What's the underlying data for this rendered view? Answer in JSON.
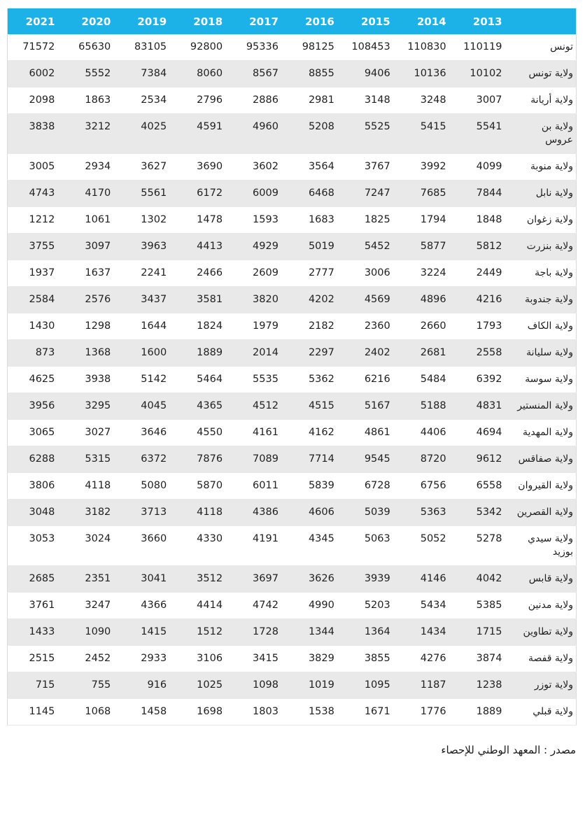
{
  "table": {
    "year_columns": [
      "2021",
      "2020",
      "2019",
      "2018",
      "2017",
      "2016",
      "2015",
      "2014",
      "2013"
    ],
    "region_column_header": "",
    "rows": [
      {
        "region": "تونس",
        "values": [
          "71572",
          "65630",
          "83105",
          "92800",
          "95336",
          "98125",
          "108453",
          "110830",
          "110119"
        ]
      },
      {
        "region": "ولاية تونس",
        "values": [
          "6002",
          "5552",
          "7384",
          "8060",
          "8567",
          "8855",
          "9406",
          "10136",
          "10102"
        ]
      },
      {
        "region": "ولاية أريانة",
        "values": [
          "2098",
          "1863",
          "2534",
          "2796",
          "2886",
          "2981",
          "3148",
          "3248",
          "3007"
        ]
      },
      {
        "region": "ولاية بن عروس",
        "values": [
          "3838",
          "3212",
          "4025",
          "4591",
          "4960",
          "5208",
          "5525",
          "5415",
          "5541"
        ]
      },
      {
        "region": "ولاية منوبة",
        "values": [
          "3005",
          "2934",
          "3627",
          "3690",
          "3602",
          "3564",
          "3767",
          "3992",
          "4099"
        ]
      },
      {
        "region": "ولاية نابل",
        "values": [
          "4743",
          "4170",
          "5561",
          "6172",
          "6009",
          "6468",
          "7247",
          "7685",
          "7844"
        ]
      },
      {
        "region": "ولاية زغوان",
        "values": [
          "1212",
          "1061",
          "1302",
          "1478",
          "1593",
          "1683",
          "1825",
          "1794",
          "1848"
        ]
      },
      {
        "region": "ولاية بنزرت",
        "values": [
          "3755",
          "3097",
          "3963",
          "4413",
          "4929",
          "5019",
          "5452",
          "5877",
          "5812"
        ]
      },
      {
        "region": "ولاية باجة",
        "values": [
          "1937",
          "1637",
          "2241",
          "2466",
          "2609",
          "2777",
          "3006",
          "3224",
          "2449"
        ]
      },
      {
        "region": "ولاية جندوبة",
        "values": [
          "2584",
          "2576",
          "3437",
          "3581",
          "3820",
          "4202",
          "4569",
          "4896",
          "4216"
        ]
      },
      {
        "region": "ولاية الكاف",
        "values": [
          "1430",
          "1298",
          "1644",
          "1824",
          "1979",
          "2182",
          "2360",
          "2660",
          "1793"
        ]
      },
      {
        "region": "ولاية سليانة",
        "values": [
          "873",
          "1368",
          "1600",
          "1889",
          "2014",
          "2297",
          "2402",
          "2681",
          "2558"
        ]
      },
      {
        "region": "ولاية سوسة",
        "values": [
          "4625",
          "3938",
          "5142",
          "5464",
          "5535",
          "5362",
          "6216",
          "5484",
          "6392"
        ]
      },
      {
        "region": "ولاية المنستير",
        "values": [
          "3956",
          "3295",
          "4045",
          "4365",
          "4512",
          "4515",
          "5167",
          "5188",
          "4831"
        ]
      },
      {
        "region": "ولاية المهدية",
        "values": [
          "3065",
          "3027",
          "3646",
          "4550",
          "4161",
          "4162",
          "4861",
          "4406",
          "4694"
        ]
      },
      {
        "region": "ولاية صفاقس",
        "values": [
          "6288",
          "5315",
          "6372",
          "7876",
          "7089",
          "7714",
          "9545",
          "8720",
          "9612"
        ]
      },
      {
        "region": "ولاية القيروان",
        "values": [
          "3806",
          "4118",
          "5080",
          "5870",
          "6011",
          "5839",
          "6728",
          "6756",
          "6558"
        ]
      },
      {
        "region": "ولاية القصرين",
        "values": [
          "3048",
          "3182",
          "3713",
          "4118",
          "4386",
          "4606",
          "5039",
          "5363",
          "5342"
        ]
      },
      {
        "region": "ولاية سيدي بوزيد",
        "values": [
          "3053",
          "3024",
          "3660",
          "4330",
          "4191",
          "4345",
          "5063",
          "5052",
          "5278"
        ]
      },
      {
        "region": "ولاية قابس",
        "values": [
          "2685",
          "2351",
          "3041",
          "3512",
          "3697",
          "3626",
          "3939",
          "4146",
          "4042"
        ]
      },
      {
        "region": "ولاية مدنين",
        "values": [
          "3761",
          "3247",
          "4366",
          "4414",
          "4742",
          "4990",
          "5203",
          "5434",
          "5385"
        ]
      },
      {
        "region": "ولاية تطاوين",
        "values": [
          "1433",
          "1090",
          "1415",
          "1512",
          "1728",
          "1344",
          "1364",
          "1434",
          "1715"
        ]
      },
      {
        "region": "ولاية قفصة",
        "values": [
          "2515",
          "2452",
          "2933",
          "3106",
          "3415",
          "3829",
          "3855",
          "4276",
          "3874"
        ]
      },
      {
        "region": "ولاية توزر",
        "values": [
          "715",
          "755",
          "916",
          "1025",
          "1098",
          "1019",
          "1095",
          "1187",
          "1238"
        ]
      },
      {
        "region": "ولاية قبلي",
        "values": [
          "1145",
          "1068",
          "1458",
          "1698",
          "1803",
          "1538",
          "1671",
          "1776",
          "1889"
        ]
      }
    ]
  },
  "footer": {
    "source": "مصدر : المعهد الوطني للإحصاء"
  },
  "colors": {
    "header_bg": "#1cb2e8",
    "header_text": "#ffffff",
    "row_alt_bg": "#e9e9e9",
    "body_text": "#1f1f1f",
    "border": "#d9d9d9"
  }
}
